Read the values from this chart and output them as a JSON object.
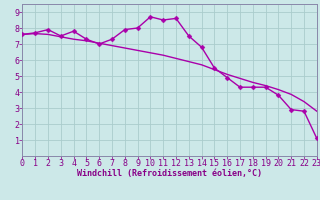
{
  "xlabel": "Windchill (Refroidissement éolien,°C)",
  "background_color": "#cce8e8",
  "line_color": "#aa00aa",
  "grid_color": "#aacccc",
  "x_hours": [
    0,
    1,
    2,
    3,
    4,
    5,
    6,
    7,
    8,
    9,
    10,
    11,
    12,
    13,
    14,
    15,
    16,
    17,
    18,
    19,
    20,
    21,
    22,
    23
  ],
  "line1_y": [
    7.6,
    7.7,
    7.9,
    7.5,
    7.8,
    7.3,
    7.0,
    7.3,
    7.9,
    8.0,
    8.7,
    8.5,
    8.6,
    7.5,
    6.8,
    5.5,
    4.9,
    4.3,
    4.3,
    4.3,
    3.8,
    2.9,
    2.8,
    1.1
  ],
  "line2_y": [
    7.6,
    7.65,
    7.6,
    7.45,
    7.3,
    7.2,
    7.05,
    6.9,
    6.75,
    6.6,
    6.45,
    6.3,
    6.1,
    5.9,
    5.7,
    5.4,
    5.1,
    4.85,
    4.6,
    4.4,
    4.15,
    3.85,
    3.4,
    2.8
  ],
  "xlim": [
    0,
    23
  ],
  "ylim": [
    0,
    9.5
  ],
  "yticks": [
    1,
    2,
    3,
    4,
    5,
    6,
    7,
    8,
    9
  ],
  "xticks": [
    0,
    1,
    2,
    3,
    4,
    5,
    6,
    7,
    8,
    9,
    10,
    11,
    12,
    13,
    14,
    15,
    16,
    17,
    18,
    19,
    20,
    21,
    22,
    23
  ],
  "tick_color": "#880088",
  "axis_color": "#880088",
  "border_color": "#8888aa",
  "xlabel_fontsize": 6.0,
  "tick_fontsize": 6.0,
  "line_width": 1.0,
  "marker_size": 2.5
}
